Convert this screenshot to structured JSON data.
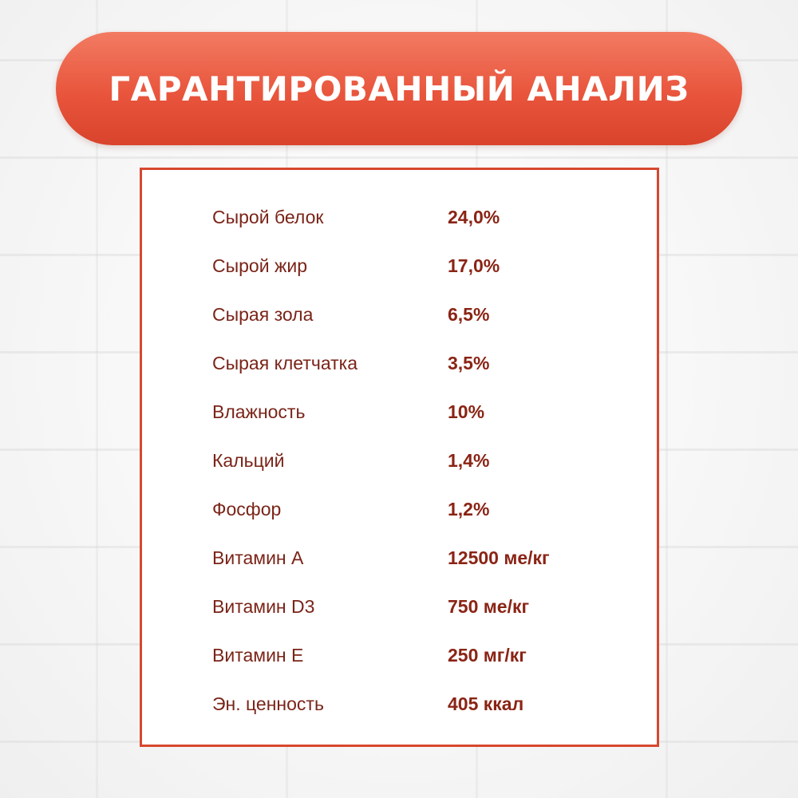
{
  "title": "ГАРАНТИРОВАННЫЙ АНАЛИЗ",
  "colors": {
    "banner": "#e8553c",
    "border": "#d8472f",
    "label_text": "#7a2418",
    "value_text": "#8a2415"
  },
  "rows": [
    {
      "label": "Сырой белок",
      "value": "24,0%"
    },
    {
      "label": "Сырой жир",
      "value": "17,0%"
    },
    {
      "label": "Сырая зола",
      "value": "6,5%"
    },
    {
      "label": "Сырая клетчатка",
      "value": "3,5%"
    },
    {
      "label": "Влажность",
      "value": "10%"
    },
    {
      "label": "Кальций",
      "value": "1,4%"
    },
    {
      "label": "Фосфор",
      "value": "1,2%"
    },
    {
      "label": "Витамин A",
      "value": "12500 ме/кг"
    },
    {
      "label": "Витамин D3",
      "value": "750 ме/кг"
    },
    {
      "label": "Витамин E",
      "value": "250 мг/кг"
    },
    {
      "label": "Эн. ценность",
      "value": "405 ккал"
    }
  ]
}
